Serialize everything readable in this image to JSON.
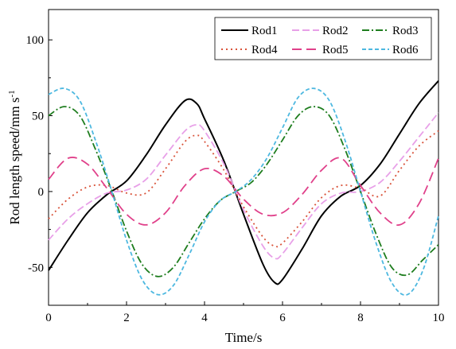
{
  "chart_data": {
    "type": "line",
    "xlabel": "Time/s",
    "ylabel_main": "Rod length speed/mm s",
    "ylabel_sup": "-1",
    "xlim": [
      0,
      10
    ],
    "ylim": [
      -75,
      120
    ],
    "xticks": [
      "0",
      "2",
      "4",
      "6",
      "8",
      "10"
    ],
    "yticks": [
      "-50",
      "0",
      "50",
      "100"
    ],
    "legend_position": "top-right",
    "series": [
      {
        "name": "Rod1",
        "color": "#000000",
        "dash": "solid",
        "x": [
          0,
          0.5,
          1,
          1.5,
          2,
          2.5,
          3,
          3.5,
          3.8,
          4,
          4.5,
          5,
          5.5,
          5.8,
          6,
          6.5,
          7,
          7.5,
          8,
          8.5,
          9,
          9.5,
          10
        ],
        "y": [
          -52,
          -32,
          -14,
          -2,
          7,
          24,
          44,
          60,
          58,
          48,
          20,
          -15,
          -48,
          -60,
          -58,
          -38,
          -16,
          -3,
          4,
          18,
          38,
          58,
          73
        ]
      },
      {
        "name": "Rod2",
        "color": "#e8a0e8",
        "dash": "dash",
        "x": [
          0,
          0.5,
          1,
          1.5,
          2,
          2.5,
          3,
          3.5,
          3.8,
          4,
          4.5,
          5,
          5.5,
          5.8,
          6,
          6.5,
          7,
          7.5,
          8,
          8.5,
          9,
          9.5,
          10
        ],
        "y": [
          -32,
          -18,
          -8,
          -1,
          1,
          8,
          24,
          40,
          44,
          40,
          18,
          -12,
          -36,
          -44,
          -41,
          -24,
          -8,
          -1,
          0,
          6,
          20,
          36,
          52
        ]
      },
      {
        "name": "Rod3",
        "color": "#1e7d1e",
        "dash": "dashdot",
        "x": [
          0,
          0.4,
          0.8,
          1.2,
          1.6,
          2,
          2.4,
          2.8,
          3.2,
          3.6,
          4,
          4.4,
          4.8,
          5.2,
          5.6,
          6,
          6.4,
          6.8,
          7.2,
          7.6,
          8,
          8.4,
          8.8,
          9.2,
          9.6,
          10
        ],
        "y": [
          50,
          56,
          50,
          28,
          2,
          -26,
          -48,
          -56,
          -50,
          -34,
          -18,
          -6,
          0,
          6,
          18,
          34,
          50,
          56,
          50,
          28,
          0,
          -28,
          -50,
          -55,
          -45,
          -35
        ]
      },
      {
        "name": "Rod4",
        "color": "#d9533a",
        "dash": "dot",
        "x": [
          0,
          0.5,
          1,
          1.5,
          2,
          2.5,
          3,
          3.5,
          3.8,
          4,
          4.5,
          5,
          5.5,
          5.8,
          6,
          6.5,
          7,
          7.5,
          8,
          8.5,
          9,
          9.5,
          10
        ],
        "y": [
          -18,
          -5,
          3,
          4,
          -1,
          -1,
          15,
          33,
          37,
          33,
          14,
          -10,
          -30,
          -36,
          -34,
          -20,
          -4,
          4,
          2,
          -3,
          14,
          30,
          40
        ]
      },
      {
        "name": "Rod5",
        "color": "#e0408a",
        "dash": "longdash",
        "x": [
          0,
          0.5,
          1,
          1.5,
          2,
          2.5,
          3,
          3.5,
          4,
          4.5,
          5,
          5.5,
          6,
          6.5,
          7,
          7.5,
          8,
          8.5,
          9,
          9.5,
          10
        ],
        "y": [
          8,
          22,
          18,
          2,
          -15,
          -22,
          -14,
          4,
          15,
          10,
          -5,
          -15,
          -14,
          -2,
          14,
          22,
          4,
          -14,
          -22,
          -8,
          22
        ]
      },
      {
        "name": "Rod6",
        "color": "#4db8e0",
        "dash": "shortdash",
        "x": [
          0,
          0.4,
          0.8,
          1.2,
          1.6,
          2,
          2.4,
          2.8,
          3.2,
          3.6,
          4,
          4.4,
          4.8,
          5.2,
          5.6,
          6,
          6.4,
          6.8,
          7.2,
          7.6,
          8,
          8.4,
          8.8,
          9.2,
          9.6,
          10
        ],
        "y": [
          64,
          68,
          60,
          34,
          2,
          -32,
          -58,
          -68,
          -62,
          -42,
          -20,
          -6,
          0,
          8,
          22,
          42,
          62,
          68,
          60,
          34,
          0,
          -34,
          -60,
          -68,
          -52,
          -16
        ]
      }
    ]
  }
}
